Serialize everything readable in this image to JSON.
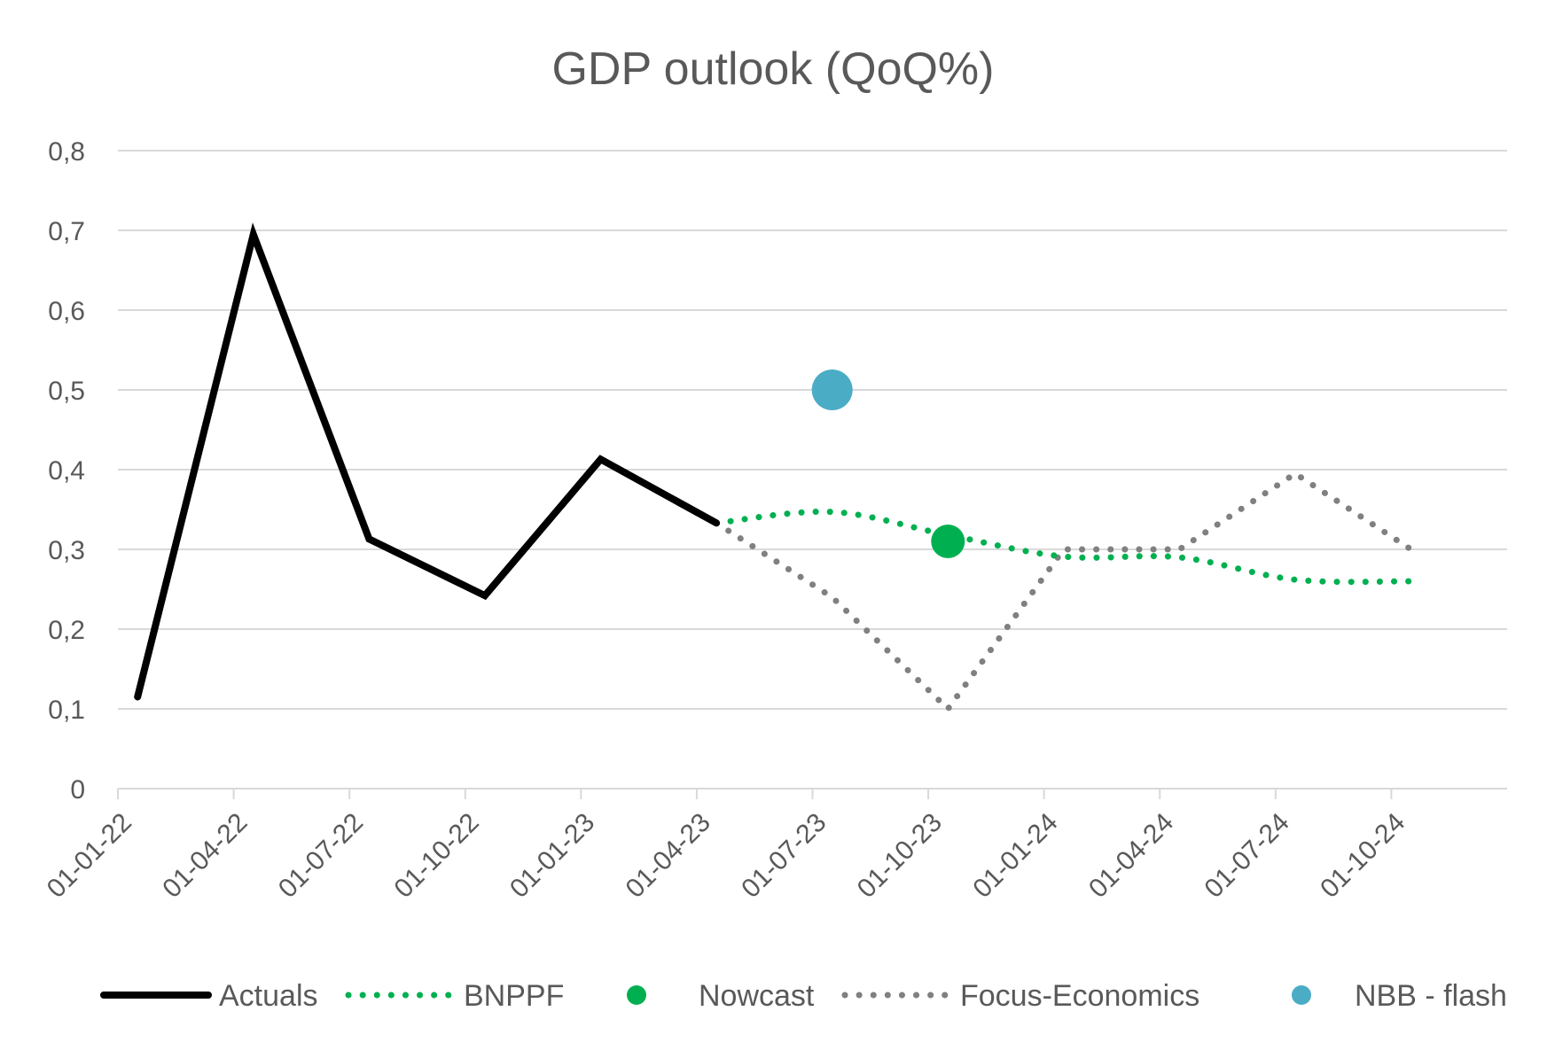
{
  "chart_data": {
    "type": "line",
    "title": "GDP outlook (QoQ%)",
    "xlabel": "",
    "ylabel": "",
    "ylim": [
      0,
      0.8
    ],
    "yticks": [
      "0",
      "0,1",
      "0,2",
      "0,3",
      "0,4",
      "0,5",
      "0,6",
      "0,7",
      "0,8"
    ],
    "categories": [
      "01-01-22",
      "01-04-22",
      "01-07-22",
      "01-10-22",
      "01-01-23",
      "01-04-23",
      "01-07-23",
      "01-10-23",
      "01-01-24",
      "01-04-24",
      "01-07-24",
      "01-10-24"
    ],
    "grid": true,
    "legend_position": "bottom",
    "series": [
      {
        "name": "Actuals",
        "style": "solid",
        "color": "#000000",
        "x": [
          0.17,
          1.17,
          2.17,
          3.17,
          4.17,
          5.17
        ],
        "values": [
          0.115,
          0.695,
          0.313,
          0.242,
          0.413,
          0.333
        ]
      },
      {
        "name": "BNPPF",
        "style": "dotted",
        "color": "#00b050",
        "x": [
          5.17,
          6.17,
          7.17,
          8.17,
          9.17,
          10.17,
          11.17
        ],
        "values": [
          0.333,
          0.347,
          0.318,
          0.291,
          0.29,
          0.262,
          0.26
        ]
      },
      {
        "name": "Nowcast",
        "style": "marker",
        "color": "#00b050",
        "x": [
          7.17
        ],
        "values": [
          0.31
        ]
      },
      {
        "name": "Focus-Economics",
        "style": "dotted",
        "color": "#808080",
        "x": [
          5.17,
          6.17,
          7.17,
          8.17,
          9.17,
          10.17,
          11.17
        ],
        "values": [
          0.333,
          0.24,
          0.1,
          0.3,
          0.3,
          0.395,
          0.3
        ]
      },
      {
        "name": "NBB - flash",
        "style": "marker",
        "color": "#4bacc6",
        "x": [
          6.17
        ],
        "values": [
          0.5
        ]
      }
    ]
  }
}
